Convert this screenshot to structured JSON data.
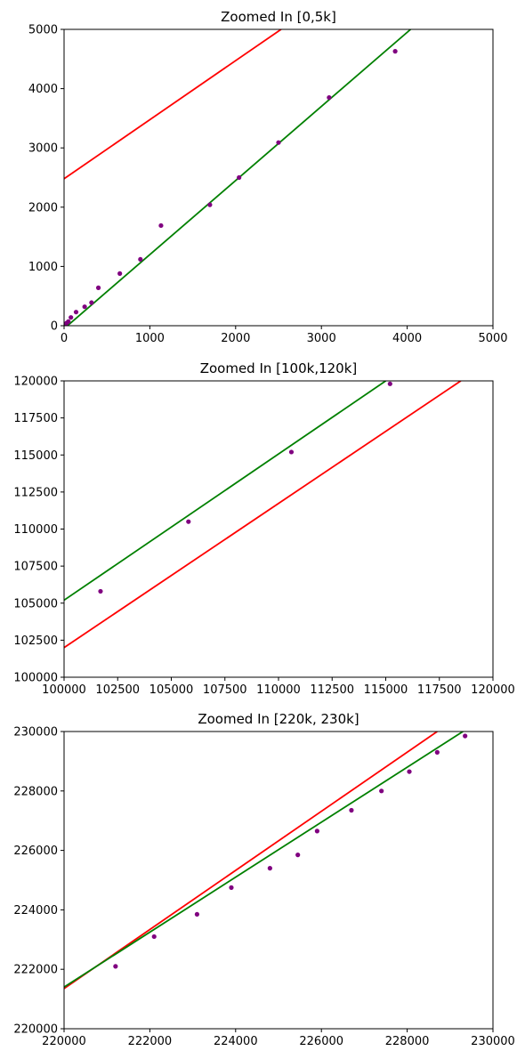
{
  "colors": {
    "red_line": "#ff0000",
    "green_line": "#008000",
    "points": "#800080",
    "axes": "#000000",
    "background": "#ffffff"
  },
  "chart_data": [
    {
      "type": "scatter",
      "title": "Zoomed In [0,5k]",
      "xlabel": "",
      "ylabel": "",
      "xlim": [
        0,
        5000
      ],
      "ylim": [
        0,
        5000
      ],
      "grid": false,
      "xticks": [
        0,
        1000,
        2000,
        3000,
        4000,
        5000
      ],
      "yticks": [
        0,
        1000,
        2000,
        3000,
        4000,
        5000
      ],
      "xtick_labels": [
        "0",
        "1000",
        "2000",
        "3000",
        "4000",
        "5000"
      ],
      "ytick_labels": [
        "0",
        "1000",
        "2000",
        "3000",
        "4000",
        "5000"
      ],
      "points": [
        {
          "x": 5,
          "y": 5
        },
        {
          "x": 15,
          "y": 25
        },
        {
          "x": 30,
          "y": 45
        },
        {
          "x": 50,
          "y": 70
        },
        {
          "x": 80,
          "y": 140
        },
        {
          "x": 140,
          "y": 230
        },
        {
          "x": 240,
          "y": 320
        },
        {
          "x": 320,
          "y": 390
        },
        {
          "x": 400,
          "y": 640
        },
        {
          "x": 650,
          "y": 880
        },
        {
          "x": 890,
          "y": 1120
        },
        {
          "x": 1130,
          "y": 1690
        },
        {
          "x": 1700,
          "y": 2040
        },
        {
          "x": 2040,
          "y": 2500
        },
        {
          "x": 2500,
          "y": 3090
        },
        {
          "x": 3090,
          "y": 3850
        },
        {
          "x": 3860,
          "y": 4630
        }
      ],
      "lines": [
        {
          "color": "red",
          "points": [
            [
              0,
              2480
            ],
            [
              2530,
              5000
            ]
          ]
        },
        {
          "color": "green",
          "points": [
            [
              0,
              -50
            ],
            [
              4040,
              5000
            ]
          ]
        }
      ]
    },
    {
      "type": "scatter",
      "title": "Zoomed In [100k,120k]",
      "xlabel": "",
      "ylabel": "",
      "xlim": [
        100000,
        120000
      ],
      "ylim": [
        100000,
        120000
      ],
      "grid": false,
      "xticks": [
        100000,
        102500,
        105000,
        107500,
        110000,
        112500,
        115000,
        117500,
        120000
      ],
      "yticks": [
        100000,
        102500,
        105000,
        107500,
        110000,
        112500,
        115000,
        117500,
        120000
      ],
      "xtick_labels": [
        "100000",
        "102500",
        "105000",
        "107500",
        "110000",
        "112500",
        "115000",
        "117500",
        "120000"
      ],
      "ytick_labels": [
        "100000",
        "102500",
        "105000",
        "107500",
        "110000",
        "112500",
        "115000",
        "117500",
        "120000"
      ],
      "points": [
        {
          "x": 101700,
          "y": 105800
        },
        {
          "x": 105800,
          "y": 110500
        },
        {
          "x": 110600,
          "y": 115200
        },
        {
          "x": 115200,
          "y": 119800
        }
      ],
      "lines": [
        {
          "color": "red",
          "points": [
            [
              100000,
              102000
            ],
            [
              118500,
              120000
            ]
          ]
        },
        {
          "color": "green",
          "points": [
            [
              100000,
              105200
            ],
            [
              115000,
              120000
            ]
          ]
        }
      ]
    },
    {
      "type": "scatter",
      "title": "Zoomed In [220k, 230k]",
      "xlabel": "",
      "ylabel": "",
      "xlim": [
        220000,
        230000
      ],
      "ylim": [
        220000,
        230000
      ],
      "grid": false,
      "xticks": [
        220000,
        222000,
        224000,
        226000,
        228000,
        230000
      ],
      "yticks": [
        220000,
        222000,
        224000,
        226000,
        228000,
        230000
      ],
      "xtick_labels": [
        "220000",
        "222000",
        "224000",
        "226000",
        "228000",
        "230000"
      ],
      "ytick_labels": [
        "220000",
        "222000",
        "224000",
        "226000",
        "228000",
        "230000"
      ],
      "points": [
        {
          "x": 221200,
          "y": 222100
        },
        {
          "x": 222100,
          "y": 223100
        },
        {
          "x": 223100,
          "y": 223850
        },
        {
          "x": 223900,
          "y": 224750
        },
        {
          "x": 224800,
          "y": 225400
        },
        {
          "x": 225450,
          "y": 225850
        },
        {
          "x": 225900,
          "y": 226650
        },
        {
          "x": 226700,
          "y": 227350
        },
        {
          "x": 227400,
          "y": 228000
        },
        {
          "x": 228050,
          "y": 228650
        },
        {
          "x": 228700,
          "y": 229300
        },
        {
          "x": 229350,
          "y": 229850
        }
      ],
      "lines": [
        {
          "color": "red",
          "points": [
            [
              220000,
              221350
            ],
            [
              228700,
              230000
            ]
          ]
        },
        {
          "color": "green",
          "points": [
            [
              220000,
              221400
            ],
            [
              229300,
              230000
            ]
          ]
        }
      ]
    }
  ]
}
